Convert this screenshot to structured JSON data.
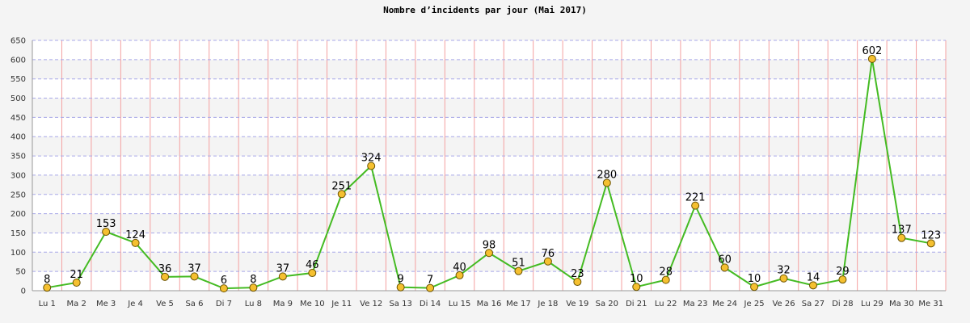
{
  "chart_data": {
    "type": "line",
    "title": "Nombre d’incidents par jour (Mai 2017)",
    "xlabel": "",
    "ylabel": "",
    "categories": [
      "Lu 1",
      "Ma 2",
      "Me 3",
      "Je 4",
      "Ve 5",
      "Sa 6",
      "Di 7",
      "Lu 8",
      "Ma 9",
      "Me 10",
      "Je 11",
      "Ve 12",
      "Sa 13",
      "Di 14",
      "Lu 15",
      "Ma 16",
      "Me 17",
      "Je 18",
      "Ve 19",
      "Sa 20",
      "Di 21",
      "Lu 22",
      "Ma 23",
      "Me 24",
      "Je 25",
      "Ve 26",
      "Sa 27",
      "Di 28",
      "Lu 29",
      "Ma 30",
      "Me 31"
    ],
    "series": [
      {
        "values": [
          8,
          21,
          153,
          124,
          36,
          37,
          6,
          8,
          37,
          46,
          251,
          324,
          9,
          7,
          40,
          98,
          51,
          76,
          23,
          280,
          10,
          28,
          221,
          60,
          10,
          32,
          14,
          29,
          602,
          137,
          123
        ]
      }
    ],
    "ylim": [
      0,
      650
    ],
    "yticks": [
      0,
      50,
      100,
      150,
      200,
      250,
      300,
      350,
      400,
      450,
      500,
      550,
      600,
      650
    ],
    "grid": true,
    "colors": {
      "line": "#44bb22",
      "marker_fill": "#f5c030",
      "marker_stroke": "#6a5200",
      "vgrid": "#f4a0a0",
      "hgrid": "#a8a8e8",
      "band_light": "#ffffff",
      "band_dark": "#f4f4f4",
      "axis": "#999999"
    }
  }
}
